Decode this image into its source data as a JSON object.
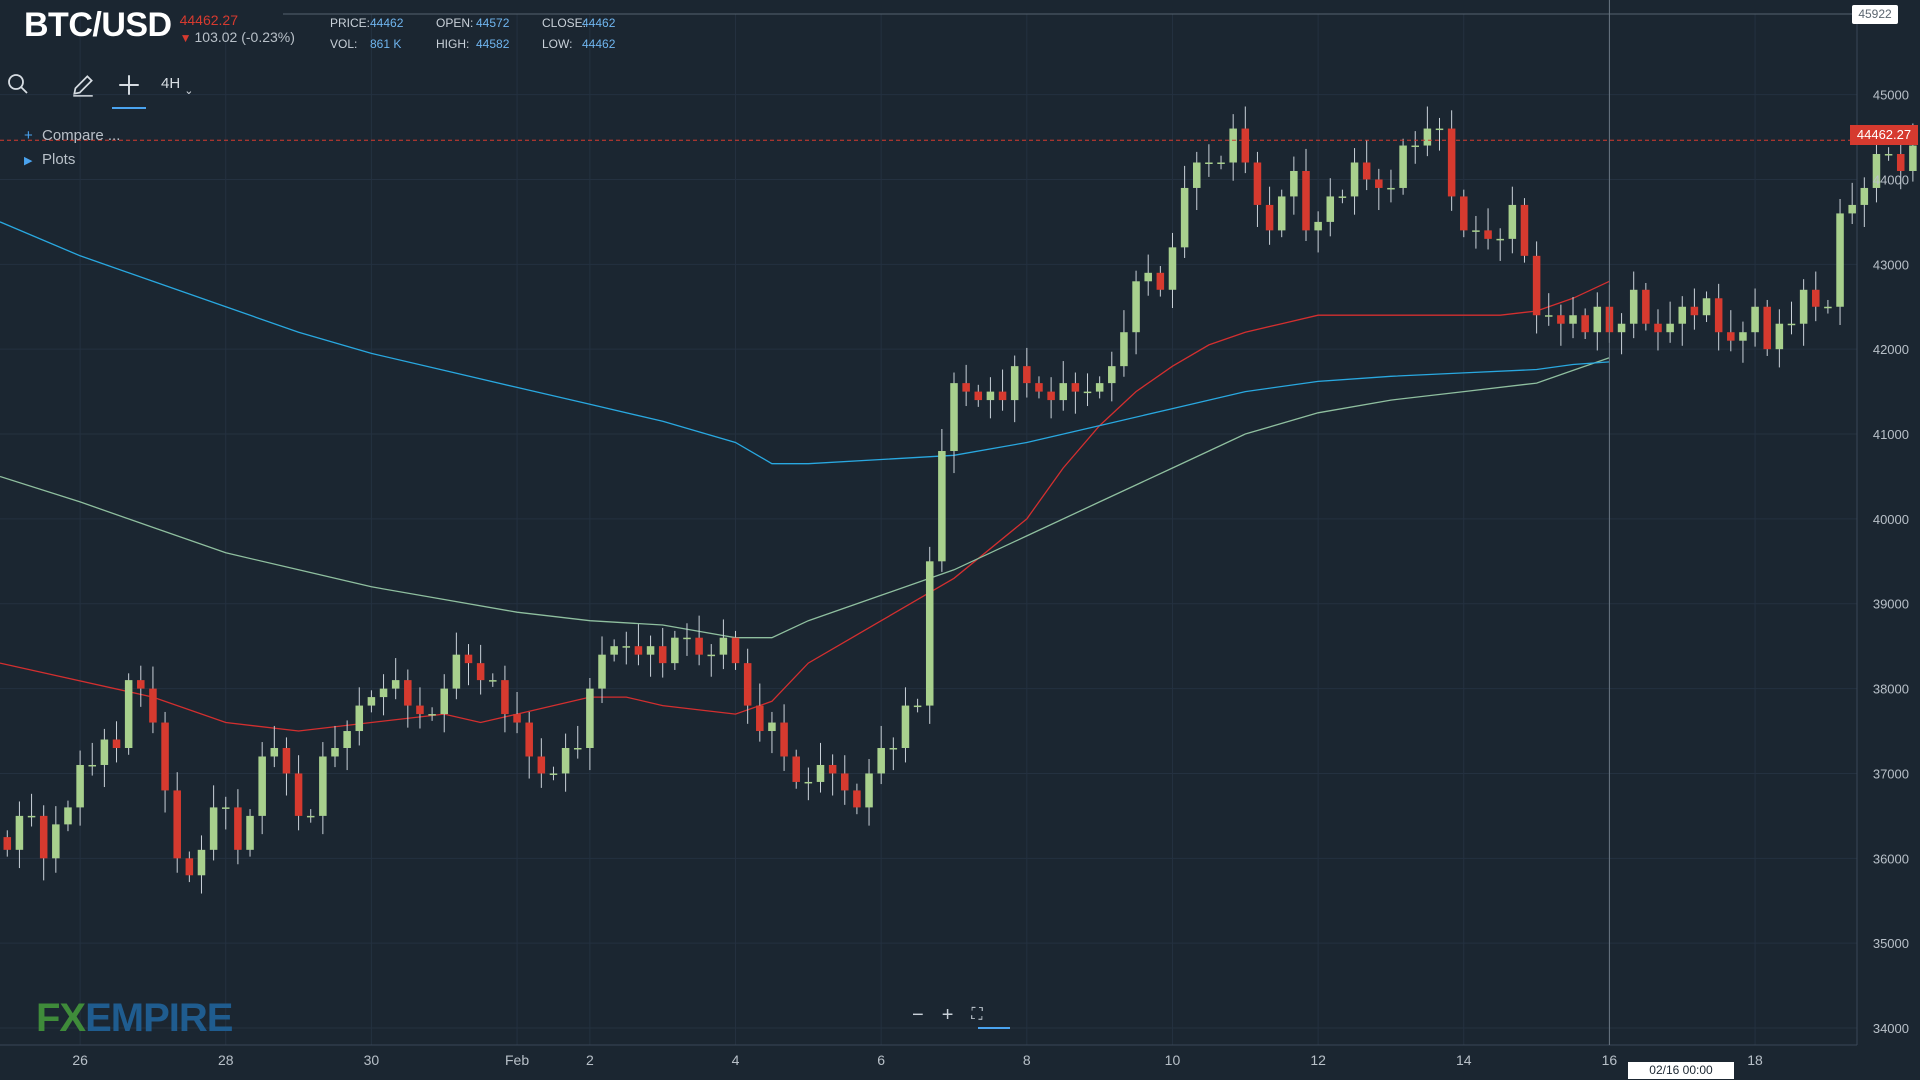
{
  "header": {
    "symbol": "BTC/USD",
    "last_price": "44462.27",
    "change": "103.02 (-0.23%)",
    "ohlc": {
      "price_label": "PRICE:",
      "price": "44462",
      "open_label": "OPEN:",
      "open": "44572",
      "close_label": "CLOSE:",
      "close": "44462",
      "vol_label": "VOL:",
      "vol": "861 K",
      "high_label": "HIGH:",
      "high": "44582",
      "low_label": "LOW:",
      "low": "44462"
    }
  },
  "toolbar": {
    "search_icon": "search-icon",
    "draw_icon": "pencil-icon",
    "crosshair_icon": "crosshair-icon",
    "timeframe": "4H"
  },
  "sidebar": {
    "compare": "Compare ...",
    "plots": "Plots"
  },
  "brand": {
    "fx": "FX",
    "empire": "EMPIRE"
  },
  "crosshair": {
    "date": "02/16 00:00"
  },
  "price_tag": "44462.27",
  "high_tag": "45922",
  "colors": {
    "background": "#1b2631",
    "grid": "#243140",
    "up": "#a8d08d",
    "down": "#d63a2f",
    "ma_fast": "#d32f2f",
    "ma_mid": "#8fbf9f",
    "ma_slow": "#29a8e0"
  },
  "chart_data": {
    "type": "candlestick",
    "symbol": "BTC/USD",
    "timeframe": "4H",
    "ylim": [
      33800,
      45950
    ],
    "y_ticks": [
      34000,
      35000,
      36000,
      37000,
      38000,
      39000,
      40000,
      41000,
      42000,
      43000,
      44000,
      45000
    ],
    "x_range_days": [
      -6.1,
      19.4
    ],
    "x_ticks": [
      {
        "day": -5,
        "label": "26"
      },
      {
        "day": -3,
        "label": "28"
      },
      {
        "day": -1,
        "label": "30"
      },
      {
        "day": 1,
        "label": "Feb"
      },
      {
        "day": 2,
        "label": "2"
      },
      {
        "day": 4,
        "label": "4"
      },
      {
        "day": 6,
        "label": "6"
      },
      {
        "day": 8,
        "label": "8"
      },
      {
        "day": 10,
        "label": "10"
      },
      {
        "day": 12,
        "label": "12"
      },
      {
        "day": 14,
        "label": "14"
      },
      {
        "day": 16,
        "label": "16"
      },
      {
        "day": 18,
        "label": "18"
      }
    ],
    "candle_interval_days": 0.16667,
    "first_candle_day": -6.0,
    "closes": [
      36100,
      36500,
      36500,
      36000,
      36400,
      36600,
      37100,
      37100,
      37400,
      37300,
      38100,
      38000,
      37600,
      36800,
      36000,
      35800,
      36100,
      36600,
      36600,
      36100,
      36500,
      37200,
      37300,
      37000,
      36500,
      36500,
      37200,
      37300,
      37500,
      37800,
      37900,
      38000,
      38100,
      37800,
      37700,
      37700,
      38000,
      38400,
      38300,
      38100,
      38100,
      37700,
      37600,
      37200,
      37000,
      37000,
      37300,
      37300,
      38000,
      38400,
      38500,
      38500,
      38400,
      38500,
      38300,
      38600,
      38600,
      38400,
      38400,
      38600,
      38300,
      37800,
      37500,
      37600,
      37200,
      36900,
      36900,
      37100,
      37000,
      36800,
      36600,
      37000,
      37300,
      37300,
      37800,
      37800,
      39500,
      40800,
      41600,
      41500,
      41400,
      41500,
      41400,
      41800,
      41600,
      41500,
      41400,
      41600,
      41500,
      41500,
      41600,
      41800,
      42200,
      42800,
      42900,
      42700,
      43200,
      43900,
      44200,
      44200,
      44200,
      44600,
      44200,
      43700,
      43400,
      43800,
      44100,
      43400,
      43500,
      43800,
      43800,
      44200,
      44000,
      43900,
      43900,
      44400,
      44400,
      44600,
      44600,
      43800,
      43400,
      43400,
      43300,
      43300,
      43700,
      43100,
      42400,
      42400,
      42300,
      42400,
      42200,
      42500,
      42200,
      42300,
      42700,
      42300,
      42200,
      42300,
      42500,
      42400,
      42600,
      42200,
      42100,
      42200,
      42500,
      42000,
      42300,
      42300,
      42700,
      42500,
      42500,
      43600,
      43700,
      43900,
      44300,
      44300,
      44100,
      44400,
      44500
    ],
    "series": [
      {
        "name": "",
        "color": "#d32f2f",
        "type": "moving-average",
        "points": [
          [
            -6.1,
            38300
          ],
          [
            -4.0,
            37900
          ],
          [
            -3.0,
            37600
          ],
          [
            -2.0,
            37500
          ],
          [
            -1.0,
            37600
          ],
          [
            0.0,
            37700
          ],
          [
            0.5,
            37600
          ],
          [
            1.0,
            37700
          ],
          [
            2.0,
            37900
          ],
          [
            2.5,
            37900
          ],
          [
            3.0,
            37800
          ],
          [
            4.0,
            37700
          ],
          [
            4.5,
            37850
          ],
          [
            5.0,
            38300
          ],
          [
            6.0,
            38800
          ],
          [
            7.0,
            39300
          ],
          [
            8.0,
            40000
          ],
          [
            8.5,
            40600
          ],
          [
            9.0,
            41100
          ],
          [
            9.5,
            41500
          ],
          [
            10.0,
            41800
          ],
          [
            10.5,
            42050
          ],
          [
            11.0,
            42200
          ],
          [
            11.5,
            42300
          ],
          [
            12.0,
            42400
          ],
          [
            12.5,
            42400
          ],
          [
            13.0,
            42400
          ],
          [
            14.0,
            42400
          ],
          [
            14.5,
            42400
          ],
          [
            15.0,
            42450
          ],
          [
            15.5,
            42600
          ],
          [
            16.0,
            42800
          ]
        ]
      },
      {
        "name": "",
        "color": "#8fbf9f",
        "type": "moving-average",
        "points": [
          [
            -6.1,
            40500
          ],
          [
            -5.0,
            40200
          ],
          [
            -4.0,
            39900
          ],
          [
            -3.0,
            39600
          ],
          [
            -2.0,
            39400
          ],
          [
            -1.0,
            39200
          ],
          [
            0.0,
            39050
          ],
          [
            1.0,
            38900
          ],
          [
            2.0,
            38800
          ],
          [
            3.0,
            38750
          ],
          [
            4.0,
            38600
          ],
          [
            4.5,
            38600
          ],
          [
            5.0,
            38800
          ],
          [
            6.0,
            39100
          ],
          [
            7.0,
            39400
          ],
          [
            8.0,
            39800
          ],
          [
            9.0,
            40200
          ],
          [
            10.0,
            40600
          ],
          [
            11.0,
            41000
          ],
          [
            12.0,
            41250
          ],
          [
            13.0,
            41400
          ],
          [
            14.0,
            41500
          ],
          [
            15.0,
            41600
          ],
          [
            15.5,
            41750
          ],
          [
            16.0,
            41900
          ]
        ]
      },
      {
        "name": "",
        "color": "#29a8e0",
        "type": "moving-average",
        "points": [
          [
            -6.1,
            43500
          ],
          [
            -5.0,
            43100
          ],
          [
            -4.0,
            42800
          ],
          [
            -3.0,
            42500
          ],
          [
            -2.0,
            42200
          ],
          [
            -1.0,
            41950
          ],
          [
            0.0,
            41750
          ],
          [
            1.0,
            41550
          ],
          [
            2.0,
            41350
          ],
          [
            3.0,
            41150
          ],
          [
            4.0,
            40900
          ],
          [
            4.5,
            40650
          ],
          [
            5.0,
            40650
          ],
          [
            6.0,
            40700
          ],
          [
            7.0,
            40750
          ],
          [
            8.0,
            40900
          ],
          [
            9.0,
            41100
          ],
          [
            10.0,
            41300
          ],
          [
            11.0,
            41500
          ],
          [
            12.0,
            41620
          ],
          [
            13.0,
            41680
          ],
          [
            14.0,
            41720
          ],
          [
            15.0,
            41760
          ],
          [
            15.5,
            41820
          ],
          [
            16.0,
            41850
          ]
        ]
      }
    ],
    "last_price": 44462.27,
    "high_marker": 45922,
    "crosshair_day": 16
  }
}
